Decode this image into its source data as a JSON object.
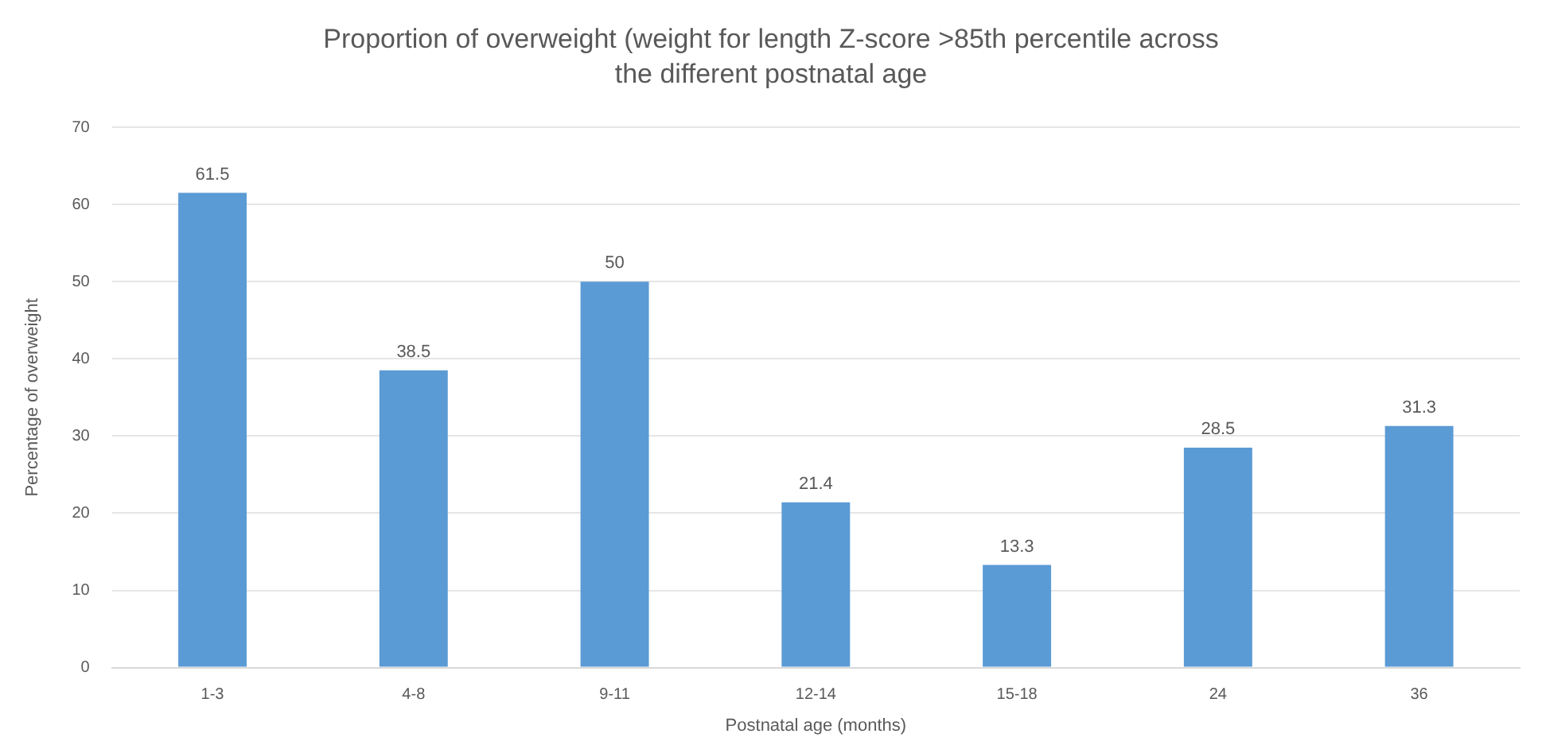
{
  "chart_data": {
    "type": "bar",
    "title": "Proportion of overweight (weight for length Z-score >85th percentile across the different postnatal age",
    "xlabel": "Postnatal age (months)",
    "ylabel": "Percentage of overweight",
    "categories": [
      "1-3",
      "4-8",
      "9-11",
      "12-14",
      "15-18",
      "24",
      "36"
    ],
    "values": [
      61.5,
      38.5,
      50,
      21.4,
      13.3,
      28.5,
      31.3
    ],
    "color": "#5b9bd5",
    "ylim": [
      0,
      70
    ],
    "yticks": [
      0,
      10,
      20,
      30,
      40,
      50,
      60,
      70
    ],
    "grid": "y",
    "data_labels": true,
    "legend": false
  }
}
